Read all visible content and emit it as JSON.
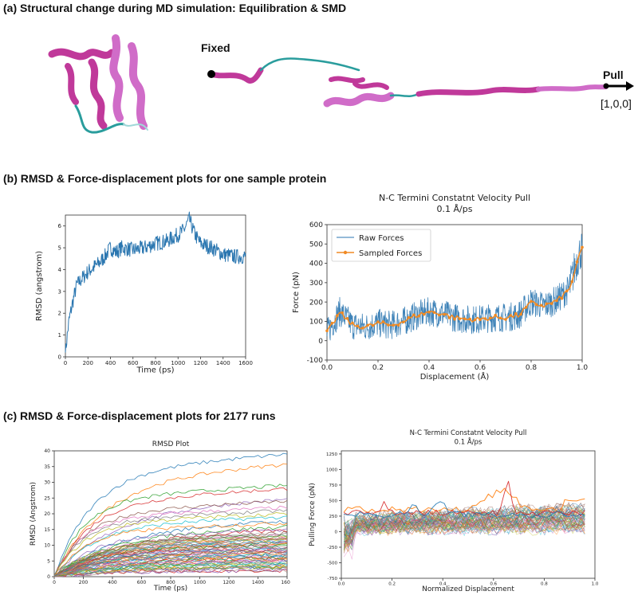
{
  "sections": {
    "a_title": "(a) Structural change during MD simulation: Equilibration & SMD",
    "b_title": "(b) RMSD & Force-displacement plots for one sample protein",
    "c_title": "(c) RMSD & Force-displacement plots for 2177 runs"
  },
  "structure": {
    "fixed_label": "Fixed",
    "pull_label": "Pull",
    "direction_label": "[1,0,0]",
    "colors": {
      "helix": "#c0399a",
      "coil": "#2a9d9d",
      "sheet": "#d06cc8"
    }
  },
  "chart_data": [
    {
      "id": "b_rmsd",
      "type": "line",
      "title": "",
      "xlabel": "Time (ps)",
      "ylabel": "RMSD (angstrom)",
      "xlim": [
        0,
        1600
      ],
      "ylim": [
        0,
        6.5
      ],
      "xticks": [
        0,
        200,
        400,
        600,
        800,
        1000,
        1200,
        1400,
        1600
      ],
      "yticks": [
        0,
        1,
        2,
        3,
        4,
        5,
        6
      ],
      "color": "#2a76b0",
      "series": [
        {
          "name": "RMSD",
          "x": [
            0,
            30,
            60,
            100,
            150,
            200,
            250,
            300,
            350,
            400,
            450,
            500,
            600,
            700,
            800,
            900,
            1000,
            1050,
            1100,
            1150,
            1200,
            1300,
            1400,
            1500,
            1600
          ],
          "values": [
            0.2,
            1.6,
            2.4,
            3.3,
            3.6,
            3.9,
            4.1,
            4.3,
            4.6,
            5.0,
            4.8,
            5.0,
            4.9,
            5.0,
            5.2,
            5.3,
            5.6,
            5.8,
            6.3,
            5.6,
            5.2,
            5.0,
            4.7,
            4.6,
            4.6
          ]
        }
      ]
    },
    {
      "id": "b_force",
      "type": "line",
      "title": "N-C Termini Constatnt Velocity Pull",
      "subtitle": "0.1 Å/ps",
      "xlabel": "Displacement (Å)",
      "ylabel": "Force (pN)",
      "xlim": [
        0,
        1.0
      ],
      "ylim": [
        -100,
        600
      ],
      "xticks": [
        0.0,
        0.2,
        0.4,
        0.6,
        0.8,
        1.0
      ],
      "yticks": [
        -100,
        0,
        100,
        200,
        300,
        400,
        500,
        600
      ],
      "legend": "top-left",
      "series": [
        {
          "name": "Raw Forces",
          "color": "#2a76b0",
          "x": [
            0,
            0.05,
            0.1,
            0.15,
            0.2,
            0.25,
            0.3,
            0.35,
            0.4,
            0.45,
            0.5,
            0.55,
            0.6,
            0.65,
            0.7,
            0.75,
            0.8,
            0.85,
            0.9,
            0.95,
            0.98,
            1.0
          ],
          "values": [
            40,
            150,
            80,
            70,
            90,
            80,
            100,
            130,
            150,
            140,
            120,
            110,
            110,
            120,
            120,
            130,
            200,
            180,
            210,
            270,
            420,
            480
          ]
        },
        {
          "name": "Sampled Forces",
          "color": "#f08a24",
          "x": [
            0,
            0.05,
            0.1,
            0.15,
            0.2,
            0.25,
            0.3,
            0.35,
            0.4,
            0.45,
            0.5,
            0.55,
            0.6,
            0.65,
            0.7,
            0.75,
            0.8,
            0.85,
            0.9,
            0.95,
            0.98,
            1.0
          ],
          "values": [
            40,
            145,
            80,
            70,
            90,
            80,
            100,
            130,
            150,
            140,
            120,
            110,
            110,
            120,
            120,
            130,
            195,
            180,
            205,
            265,
            400,
            480
          ]
        }
      ]
    },
    {
      "id": "c_rmsd",
      "type": "line",
      "title": "RMSD Plot",
      "xlabel": "Time (ps)",
      "ylabel": "RMSD (Angstrom)",
      "xlim": [
        0,
        1600
      ],
      "ylim": [
        0,
        40
      ],
      "xticks": [
        0,
        200,
        400,
        600,
        800,
        1000,
        1200,
        1400,
        1600
      ],
      "yticks": [
        0,
        5,
        10,
        15,
        20,
        25,
        30,
        35,
        40
      ],
      "n_runs": 2177,
      "final_values": [
        39,
        36,
        29,
        28,
        25,
        24,
        22,
        21,
        20,
        19,
        18,
        17,
        16,
        15,
        15,
        14,
        13,
        12,
        12,
        11,
        11,
        10,
        10,
        9,
        9,
        8,
        8,
        8,
        7,
        7,
        7,
        6,
        6,
        6,
        5,
        5,
        5,
        4,
        4,
        4,
        3,
        3,
        3,
        2,
        2
      ]
    },
    {
      "id": "c_force",
      "type": "line",
      "title": "N-C Termini Constatnt Velocity Pull",
      "subtitle": "0.1 Å/ps",
      "xlabel": "Normalized Displacement",
      "ylabel": "Pulling Force (pN)",
      "xlim": [
        0,
        1.0
      ],
      "ylim": [
        -750,
        1300
      ],
      "xticks": [
        0.0,
        0.2,
        0.4,
        0.6,
        0.8,
        1.0
      ],
      "yticks": [
        -750,
        -500,
        -250,
        0,
        250,
        500,
        750,
        1000,
        1250
      ],
      "n_runs": 2177
    }
  ]
}
